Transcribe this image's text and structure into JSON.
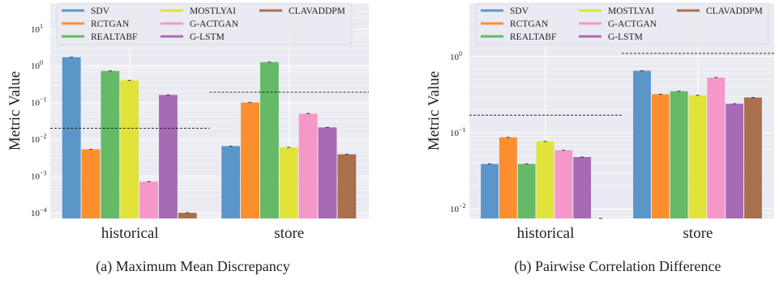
{
  "colors": {
    "SDV": "#5b96c8",
    "RCTGAN": "#fb8f2f",
    "REALTABF": "#66b967",
    "MOSTLYAI": "#e1e23a",
    "G-ACTGAN": "#f597c8",
    "G-LSTM": "#a76ab5",
    "CLAVADDPM": "#a9704e",
    "panel_bg": "#eaeaf2",
    "grid": "#ffffff"
  },
  "chart_data": [
    {
      "type": "bar",
      "caption": "(a) Maximum Mean Discrepancy",
      "ylabel": "Metric Value",
      "yscale": "log",
      "ylim": [
        7e-05,
        50
      ],
      "ytick_labels": [
        {
          "label": "10",
          "exp": "−4",
          "value": 0.0001
        },
        {
          "label": "10",
          "exp": "−3",
          "value": 0.001
        },
        {
          "label": "10",
          "exp": "−2",
          "value": 0.01
        },
        {
          "label": "10",
          "exp": "−1",
          "value": 0.1
        },
        {
          "label": "10",
          "exp": "0",
          "value": 1
        },
        {
          "label": "10",
          "exp": "1",
          "value": 10
        }
      ],
      "categories": [
        "historical",
        "store"
      ],
      "legend": {
        "position": "top",
        "columns": 3
      },
      "grid": true,
      "series": [
        {
          "name": "SDV",
          "values": [
            1.7,
            0.0065
          ]
        },
        {
          "name": "RCTGAN",
          "values": [
            0.0053,
            0.1
          ]
        },
        {
          "name": "REALTABF",
          "values": [
            0.72,
            1.25
          ]
        },
        {
          "name": "MOSTLYAI",
          "values": [
            0.4,
            0.006
          ]
        },
        {
          "name": "G-ACTGAN",
          "values": [
            0.0007,
            0.05
          ]
        },
        {
          "name": "G-LSTM",
          "values": [
            0.16,
            0.021
          ]
        },
        {
          "name": "CLAVADDPM",
          "values": [
            0.0001,
            0.0039
          ]
        }
      ],
      "reference_lines": [
        {
          "category": "historical",
          "value": 0.02
        },
        {
          "category": "store",
          "value": 0.19
        }
      ]
    },
    {
      "type": "bar",
      "caption": "(b) Pairwise Correlation Difference",
      "ylabel": "Metric Value",
      "yscale": "log",
      "ylim": [
        0.0075,
        5
      ],
      "ytick_labels": [
        {
          "label": "10",
          "exp": "−2",
          "value": 0.01
        },
        {
          "label": "10",
          "exp": "−1",
          "value": 0.1
        },
        {
          "label": "10",
          "exp": "0",
          "value": 1
        }
      ],
      "categories": [
        "historical",
        "store"
      ],
      "legend": {
        "position": "top",
        "columns": 3
      },
      "grid": true,
      "series": [
        {
          "name": "SDV",
          "values": [
            0.039,
            0.65
          ]
        },
        {
          "name": "RCTGAN",
          "values": [
            0.087,
            0.32
          ]
        },
        {
          "name": "REALTABF",
          "values": [
            0.039,
            0.35
          ]
        },
        {
          "name": "MOSTLYAI",
          "values": [
            0.077,
            0.31
          ]
        },
        {
          "name": "G-ACTGAN",
          "values": [
            0.059,
            0.53
          ]
        },
        {
          "name": "G-LSTM",
          "values": [
            0.048,
            0.24
          ]
        },
        {
          "name": "CLAVADDPM",
          "values": [
            0.0075,
            0.29
          ]
        }
      ],
      "reference_lines": [
        {
          "category": "historical",
          "value": 0.17
        },
        {
          "category": "store",
          "value": 1.1
        }
      ]
    }
  ]
}
